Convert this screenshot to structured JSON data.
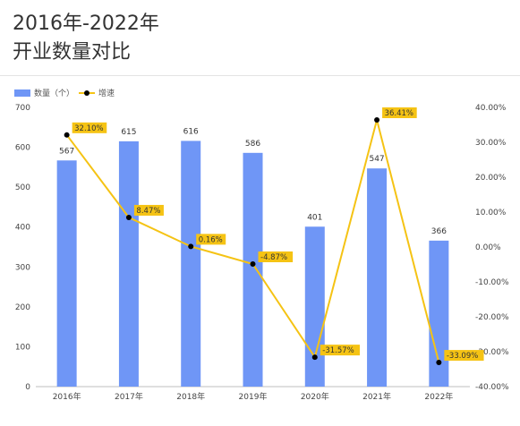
{
  "title": "2016年-2022年",
  "subtitle": "开业数量对比",
  "chart_data": {
    "type": "bar",
    "categories": [
      "2016年",
      "2017年",
      "2018年",
      "2019年",
      "2020年",
      "2021年",
      "2022年"
    ],
    "series": [
      {
        "name": "数量（个）",
        "type": "bar",
        "axis": "left",
        "color": "#6f96f6",
        "values": [
          567,
          615,
          616,
          586,
          401,
          547,
          366
        ],
        "labels": [
          "567",
          "615",
          "616",
          "586",
          "401",
          "547",
          "366"
        ]
      },
      {
        "name": "增速",
        "type": "line",
        "axis": "right",
        "color": "#f5c314",
        "marker_color": "#000000",
        "values": [
          32.1,
          8.47,
          0.16,
          -4.87,
          -31.57,
          36.41,
          -33.09
        ],
        "labels": [
          "32.10%",
          "8.47%",
          "0.16%",
          "-4.87%",
          "-31.57%",
          "36.41%",
          "-33.09%"
        ]
      }
    ],
    "y_left": {
      "min": 0,
      "max": 700,
      "ticks": [
        0,
        100,
        200,
        300,
        400,
        500,
        600,
        700
      ],
      "tick_labels": [
        "0",
        "100",
        "200",
        "300",
        "400",
        "500",
        "600",
        "700"
      ]
    },
    "y_right": {
      "min": -40,
      "max": 40,
      "ticks": [
        -40,
        -30,
        -20,
        -10,
        0,
        10,
        20,
        30,
        40
      ],
      "tick_labels": [
        "-40.00%",
        "-30.00%",
        "-20.00%",
        "-10.00%",
        "0.00%",
        "10.00%",
        "20.00%",
        "30.00%",
        "40.00%"
      ]
    },
    "grid": false,
    "legend": {
      "position": "top-left",
      "entries": [
        "数量（个）",
        "增速"
      ]
    },
    "label_background": "#f5c314"
  }
}
